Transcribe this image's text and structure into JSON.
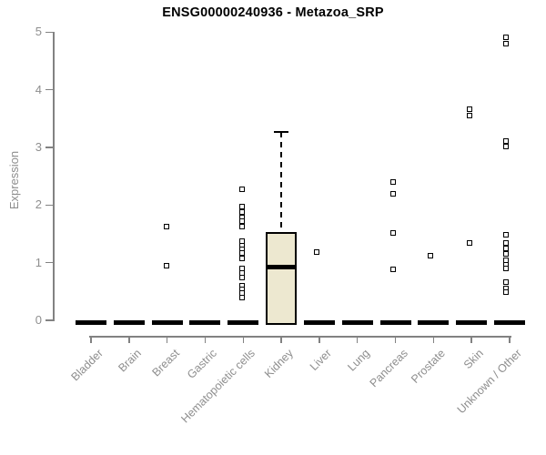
{
  "page_title": "ENSG00000240936 - Metazoa_SRP",
  "chart_data": {
    "type": "boxplot",
    "title": "ENSG00000240936 - Metazoa_SRP",
    "xlabel": "",
    "ylabel": "Expression",
    "ylim": [
      0,
      5
    ],
    "yticks": [
      0,
      1,
      2,
      3,
      4,
      5
    ],
    "grid": false,
    "legend": "none",
    "categories": [
      "Bladder",
      "Brain",
      "Breast",
      "Gastric",
      "Hematopoietic cells",
      "Kidney",
      "Liver",
      "Lung",
      "Pancreas",
      "Prostate",
      "Skin",
      "Unknown / Other"
    ],
    "collapsed_median_bar_value": 0,
    "collapsed_median_bar_note": "every category shows a thick black median bar at expression 0",
    "boxes": [
      {
        "category": "Kidney",
        "q1": 0,
        "median": 0.93,
        "q3": 1.53,
        "whisker_low": 0,
        "whisker_high": 3.27
      }
    ],
    "points": [
      {
        "category": "Breast",
        "dx": -1,
        "values": [
          1.63,
          0.95
        ]
      },
      {
        "category": "Hematopoietic cells",
        "dx": -1,
        "values": [
          2.27,
          1.97,
          1.88,
          1.79,
          1.72,
          1.63,
          1.38,
          1.3,
          1.23,
          1.17,
          1.07,
          0.9,
          0.82,
          0.74,
          0.6,
          0.54,
          0.47,
          0.4
        ]
      },
      {
        "category": "Liver",
        "dx": -3,
        "values": [
          1.18
        ]
      },
      {
        "category": "Pancreas",
        "dx": -3,
        "values": [
          2.4,
          2.19,
          1.51,
          0.88
        ]
      },
      {
        "category": "Prostate",
        "dx": -3,
        "values": [
          1.12
        ]
      },
      {
        "category": "Skin",
        "dx": -2,
        "values": [
          3.67,
          3.56,
          1.34
        ]
      },
      {
        "category": "Unknown / Other",
        "dx": -4,
        "values": [
          4.91,
          4.8,
          3.11,
          3.01,
          1.48,
          1.34,
          1.24,
          1.15,
          1.05,
          0.97,
          0.9,
          0.66,
          0.56,
          0.49
        ]
      }
    ],
    "colors": {
      "box_fill": "#ede8d0",
      "box_border": "#000000",
      "point_border": "#000000",
      "median_bar": "#000000",
      "axis": "#828282",
      "tick_label": "#8e8e8e",
      "title": "#000000",
      "background": "#ffffff"
    }
  }
}
